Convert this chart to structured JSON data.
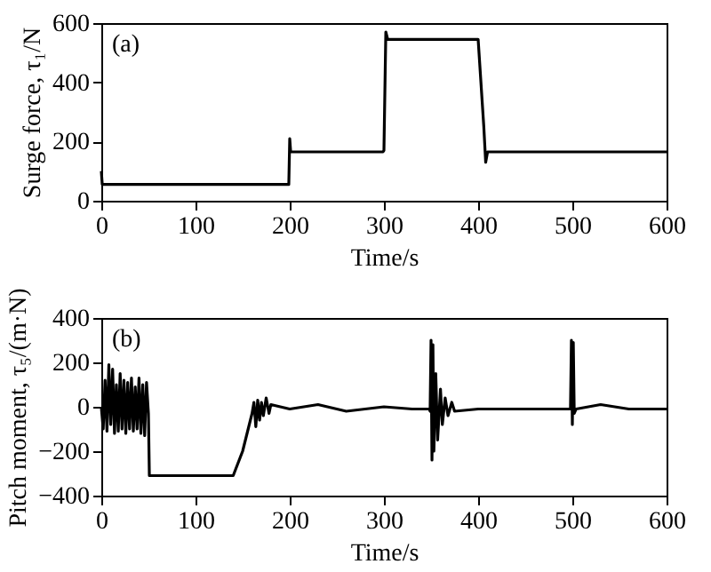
{
  "chart_data": [
    {
      "type": "line",
      "xlabel": "Time/s",
      "ylabel": "Surge force, τ₁/N",
      "annotations": [
        "(a)"
      ],
      "xlim": [
        0,
        600
      ],
      "xticks": [
        0,
        100,
        200,
        300,
        400,
        500,
        600
      ],
      "ylim": [
        0,
        600
      ],
      "yticks": [
        0,
        200,
        400,
        600
      ],
      "grid": false,
      "x": [
        0,
        1,
        100,
        199,
        200,
        201,
        202,
        250,
        299,
        300,
        302,
        304,
        350,
        398,
        400,
        406,
        408,
        410,
        500,
        600
      ],
      "series": [
        {
          "color": "#000000",
          "values": [
            100,
            55,
            55,
            55,
            210,
            165,
            165,
            165,
            165,
            170,
            570,
            545,
            545,
            545,
            545,
            250,
            130,
            165,
            165,
            165
          ]
        }
      ]
    },
    {
      "type": "line",
      "xlabel": "Time/s",
      "ylabel": "Pitch moment, τ₅/(m·N)",
      "annotations": [
        "(b)"
      ],
      "xlim": [
        0,
        600
      ],
      "xticks": [
        0,
        100,
        200,
        300,
        400,
        500,
        600
      ],
      "ylim": [
        -400,
        400
      ],
      "yticks": [
        -400,
        -200,
        0,
        200,
        400
      ],
      "grid": false,
      "x": [
        0,
        2,
        4,
        6,
        8,
        10,
        12,
        14,
        16,
        18,
        20,
        22,
        24,
        26,
        28,
        30,
        32,
        34,
        36,
        38,
        40,
        42,
        44,
        46,
        48,
        50,
        51,
        140,
        150,
        160,
        162,
        164,
        166,
        168,
        170,
        172,
        175,
        178,
        180,
        200,
        230,
        260,
        300,
        330,
        348,
        349,
        350,
        351,
        352,
        353,
        355,
        357,
        360,
        362,
        365,
        368,
        372,
        375,
        400,
        450,
        498,
        499,
        500,
        501,
        502,
        504,
        530,
        560,
        600
      ],
      "series": [
        {
          "color": "#000000",
          "values": [
            0,
            -100,
            120,
            -110,
            190,
            -80,
            170,
            -120,
            100,
            -110,
            150,
            -100,
            120,
            -120,
            110,
            -100,
            130,
            -110,
            90,
            -100,
            130,
            -120,
            100,
            -130,
            110,
            -30,
            -310,
            -310,
            -200,
            -30,
            20,
            -90,
            30,
            -60,
            20,
            -40,
            40,
            -30,
            10,
            -10,
            10,
            -20,
            0,
            -10,
            -10,
            -20,
            300,
            -240,
            280,
            -200,
            150,
            -150,
            80,
            -80,
            40,
            -40,
            20,
            -20,
            -10,
            -10,
            -10,
            300,
            -80,
            290,
            -30,
            -10,
            10,
            -10,
            -10
          ]
        }
      ]
    }
  ]
}
